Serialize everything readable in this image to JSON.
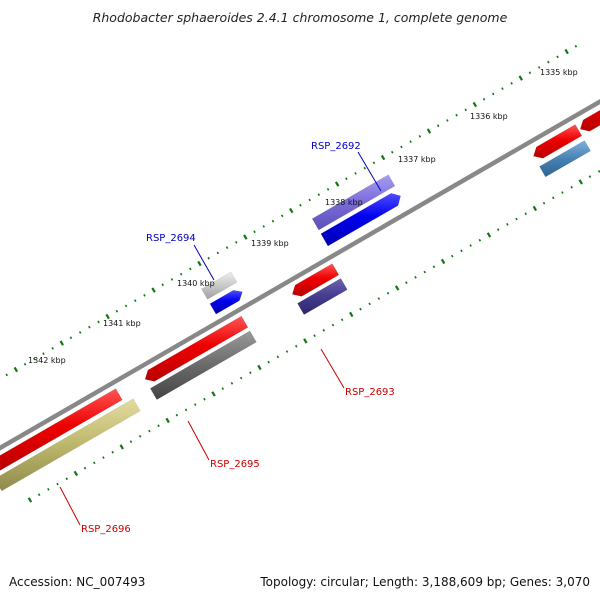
{
  "title": "Rhodobacter sphaeroides 2.4.1 chromosome 1, complete genome",
  "footer": {
    "accession": "Accession: NC_007493",
    "summary": "Topology: circular; Length: 3,188,609 bp; Genes: 3,070"
  },
  "ruler_labels": [
    "1335 kbp",
    "1336 kbp",
    "1337 kbp",
    "1338 kbp",
    "1339 kbp",
    "1340 kbp",
    "1341 kbp",
    "1342 kbp"
  ],
  "genes": [
    {
      "name": "RSP_2692",
      "color": "#0000cc"
    },
    {
      "name": "RSP_2693",
      "color": "#cc0000"
    },
    {
      "name": "RSP_2694",
      "color": "#0000cc"
    },
    {
      "name": "RSP_2695",
      "color": "#cc0000"
    },
    {
      "name": "RSP_2696",
      "color": "#cc0000"
    }
  ],
  "colors": {
    "forward_gene": "#0000ee",
    "reverse_gene": "#ee0000",
    "backbone": "#777777",
    "ruler_ticks": "#117711"
  }
}
